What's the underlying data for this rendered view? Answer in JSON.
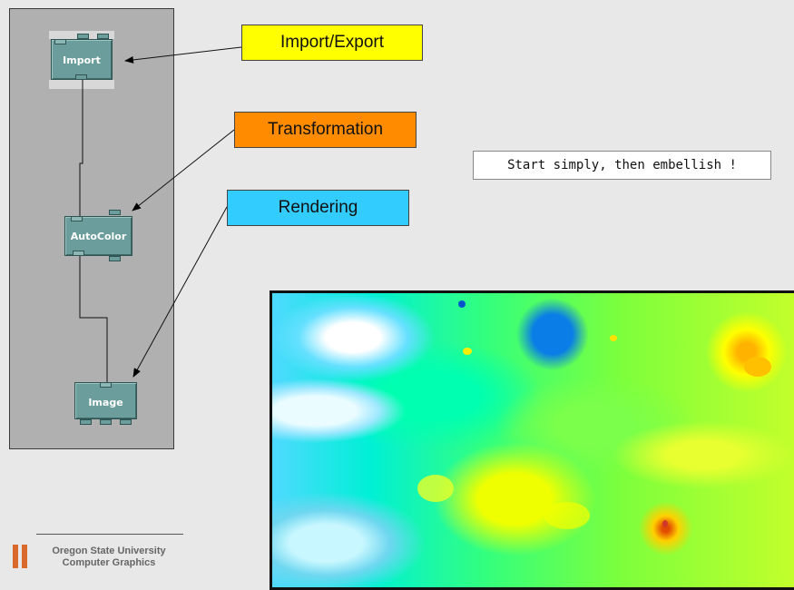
{
  "modules": {
    "import": "Import",
    "autocolor": "AutoColor",
    "image": "Image"
  },
  "callouts": {
    "import_export": "Import/Export",
    "transformation": "Transformation",
    "rendering": "Rendering"
  },
  "note": "Start simply, then embellish !",
  "footer": {
    "line1": "Oregon State University",
    "line2": "Computer Graphics"
  },
  "colors": {
    "import_export": "#ffff00",
    "transformation": "#ff8c00",
    "rendering": "#33ccff",
    "module": "#6a9d9b",
    "panel": "#b0b0b0",
    "logo": "#d96a2c"
  }
}
